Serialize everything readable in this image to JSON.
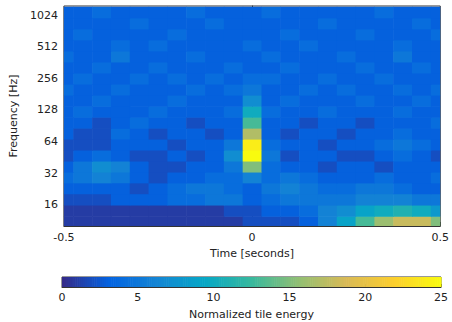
{
  "chart_data": {
    "type": "heatmap",
    "x_label": "Time [seconds]",
    "y_label": "Frequency [Hz]",
    "colorbar_label": "Normalized tile energy",
    "log": "y",
    "grid": false,
    "xlim": [
      -0.5,
      0.5
    ],
    "xticks": [
      -0.5,
      0,
      0.5
    ],
    "ylim": [
      10,
      1250
    ],
    "yticks": [
      16,
      32,
      64,
      128,
      256,
      512,
      1024
    ],
    "colorbar": {
      "range": [
        0,
        25
      ],
      "ticks": [
        0,
        5,
        10,
        15,
        20,
        25
      ]
    },
    "x": [
      -0.5,
      -0.45,
      -0.4,
      -0.35,
      -0.3,
      -0.25,
      -0.2,
      -0.15,
      -0.1,
      -0.05,
      0,
      0.05,
      0.1,
      0.15,
      0.2,
      0.25,
      0.3,
      0.35,
      0.4,
      0.45,
      0.5
    ],
    "y": [
      11,
      14,
      18,
      23,
      29,
      37,
      47,
      60,
      76,
      97,
      123,
      157,
      200,
      255,
      325,
      414,
      528,
      672,
      856,
      1090
    ],
    "values": [
      [
        1,
        1,
        1,
        1,
        1,
        1,
        1,
        1,
        1,
        1,
        2,
        2,
        2,
        3,
        6,
        9,
        13,
        16,
        18,
        18,
        15
      ],
      [
        1,
        1,
        1,
        1,
        1,
        1,
        1,
        1,
        1,
        2,
        2,
        3,
        3,
        4,
        6,
        7,
        9,
        10,
        11,
        10,
        8
      ],
      [
        2,
        2,
        2,
        3,
        3,
        3,
        4,
        4,
        5,
        5,
        3,
        4,
        5,
        5,
        5,
        5,
        6,
        6,
        6,
        5,
        5
      ],
      [
        3,
        3,
        3,
        3,
        2,
        3,
        4,
        5,
        5,
        4,
        3,
        5,
        6,
        5,
        4,
        4,
        5,
        5,
        4,
        3,
        3
      ],
      [
        4,
        5,
        6,
        5,
        3,
        2,
        3,
        3,
        4,
        4,
        6,
        4,
        5,
        4,
        3,
        3,
        3,
        4,
        3,
        3,
        4
      ],
      [
        3,
        5,
        7,
        6,
        3,
        2,
        2,
        3,
        3,
        5,
        15,
        4,
        3,
        3,
        2,
        3,
        3,
        2,
        3,
        3,
        3
      ],
      [
        2,
        3,
        4,
        3,
        2,
        2,
        3,
        2,
        3,
        7,
        25,
        5,
        2,
        3,
        3,
        2,
        2,
        3,
        4,
        3,
        2
      ],
      [
        2,
        2,
        2,
        3,
        3,
        3,
        2,
        3,
        3,
        5,
        24,
        4,
        3,
        3,
        2,
        3,
        3,
        4,
        5,
        4,
        3
      ],
      [
        3,
        2,
        2,
        4,
        3,
        2,
        3,
        3,
        2,
        3,
        17,
        3,
        2,
        3,
        3,
        2,
        3,
        3,
        4,
        3,
        3
      ],
      [
        3,
        3,
        2,
        3,
        4,
        3,
        3,
        2,
        3,
        3,
        13,
        3,
        3,
        2,
        3,
        3,
        2,
        3,
        3,
        3,
        4
      ],
      [
        3,
        4,
        3,
        3,
        3,
        4,
        3,
        3,
        3,
        4,
        10,
        4,
        3,
        3,
        4,
        3,
        3,
        3,
        4,
        3,
        3
      ],
      [
        3,
        3,
        4,
        3,
        3,
        3,
        4,
        3,
        3,
        3,
        7,
        3,
        4,
        3,
        3,
        3,
        4,
        3,
        3,
        4,
        3
      ],
      [
        4,
        3,
        3,
        4,
        3,
        3,
        3,
        4,
        3,
        4,
        5,
        3,
        3,
        4,
        3,
        4,
        3,
        3,
        4,
        3,
        4
      ],
      [
        3,
        4,
        3,
        3,
        4,
        3,
        4,
        3,
        4,
        3,
        4,
        4,
        3,
        3,
        4,
        3,
        3,
        4,
        3,
        3,
        3
      ],
      [
        3,
        3,
        4,
        3,
        3,
        4,
        3,
        3,
        3,
        4,
        3,
        3,
        4,
        3,
        3,
        3,
        4,
        3,
        3,
        4,
        3
      ],
      [
        4,
        3,
        3,
        5,
        3,
        3,
        3,
        4,
        3,
        3,
        3,
        4,
        3,
        3,
        3,
        4,
        3,
        3,
        5,
        3,
        3
      ],
      [
        3,
        3,
        3,
        4,
        3,
        4,
        3,
        3,
        3,
        3,
        4,
        3,
        3,
        4,
        3,
        3,
        3,
        3,
        4,
        3,
        3
      ],
      [
        3,
        4,
        3,
        3,
        3,
        3,
        4,
        3,
        3,
        3,
        3,
        3,
        4,
        3,
        3,
        3,
        4,
        3,
        3,
        3,
        4
      ],
      [
        3,
        3,
        3,
        3,
        4,
        3,
        3,
        3,
        4,
        3,
        3,
        3,
        3,
        3,
        4,
        3,
        3,
        3,
        3,
        4,
        3
      ],
      [
        3,
        3,
        4,
        3,
        3,
        3,
        3,
        4,
        3,
        3,
        3,
        4,
        3,
        3,
        3,
        3,
        3,
        4,
        3,
        3,
        3
      ]
    ]
  }
}
